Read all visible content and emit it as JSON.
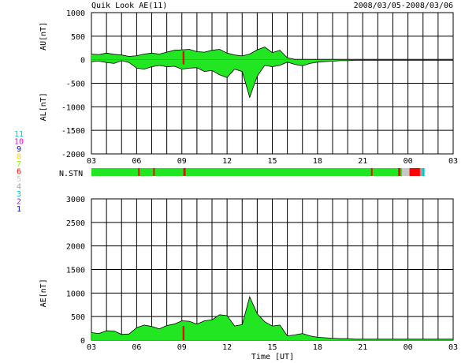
{
  "header": {
    "title": "Quik Look AE(11)",
    "date_range": "2008/03/05-2008/03/06"
  },
  "station_legend": [
    {
      "label": "11",
      "color": "#00c8c8"
    },
    {
      "label": "10",
      "color": "#ff00ff"
    },
    {
      "label": "9",
      "color": "#0000cc"
    },
    {
      "label": "8",
      "color": "#ffcc00"
    },
    {
      "label": "7",
      "color": "#7cfc00"
    },
    {
      "label": "6",
      "color": "#ff0000"
    },
    {
      "label": "5",
      "color": "#c8c8c8"
    },
    {
      "label": "4",
      "color": "#a0a0a0"
    },
    {
      "label": "3",
      "color": "#00c8c8"
    },
    {
      "label": "2",
      "color": "#8a2be2"
    },
    {
      "label": "1",
      "color": "#0000ff"
    }
  ],
  "x_ticks": [
    "03",
    "06",
    "09",
    "12",
    "15",
    "18",
    "21",
    "00",
    "03"
  ],
  "xlabel": "Time [UT]",
  "nstn_label": "N.STN",
  "chart_data": [
    {
      "type": "area",
      "name": "AU/AL",
      "ylabel_top": "AU[nT]",
      "ylabel_bottom": "AL[nT]",
      "ylim": [
        -2000,
        1000
      ],
      "yticks": [
        1000,
        500,
        0,
        -500,
        -1000,
        -1500,
        -2000
      ],
      "x_unit": "hours since 03 UT",
      "xlim": [
        0,
        24
      ],
      "au": {
        "x": [
          0,
          0.5,
          1,
          1.5,
          2,
          2.5,
          3,
          3.5,
          4,
          4.5,
          5,
          5.5,
          6,
          6.5,
          7,
          7.5,
          8,
          8.5,
          9,
          9.5,
          10,
          10.5,
          11,
          11.5,
          12,
          12.5,
          13,
          13.5,
          14,
          14.5,
          15,
          15.5,
          16,
          16.5,
          17,
          17.5,
          18,
          18.5,
          19,
          19.5,
          20,
          21,
          21.5,
          22,
          22.5,
          23,
          23.5,
          24
        ],
        "y": [
          120,
          110,
          140,
          115,
          100,
          70,
          85,
          120,
          140,
          120,
          160,
          200,
          210,
          220,
          170,
          160,
          200,
          220,
          140,
          100,
          80,
          120,
          210,
          270,
          150,
          200,
          40,
          10,
          10,
          10,
          10,
          10,
          10,
          10,
          10,
          10,
          10,
          10,
          10,
          10,
          10,
          10,
          10,
          10,
          10,
          10,
          10,
          10
        ]
      },
      "al": {
        "x": [
          0,
          0.5,
          1,
          1.5,
          2,
          2.5,
          3,
          3.5,
          4,
          4.5,
          5,
          5.5,
          6,
          6.5,
          7,
          7.5,
          8,
          8.5,
          9,
          9.5,
          10,
          10.5,
          11,
          11.5,
          12,
          12.5,
          13,
          13.5,
          14,
          14.5,
          15,
          15.5,
          16,
          16.5,
          17,
          17.5,
          18,
          18.5,
          19,
          19.5,
          20,
          21,
          21.5,
          22,
          22.5,
          23,
          23.5,
          24
        ],
        "y": [
          -40,
          -30,
          -60,
          -80,
          -20,
          -60,
          -180,
          -200,
          -150,
          -120,
          -150,
          -140,
          -200,
          -180,
          -170,
          -250,
          -230,
          -320,
          -380,
          -200,
          -250,
          -800,
          -350,
          -120,
          -150,
          -120,
          -50,
          -100,
          -130,
          -80,
          -50,
          -40,
          -30,
          -20,
          -20,
          -10,
          -10,
          -10,
          -10,
          -10,
          -10,
          -10,
          -10,
          -10,
          -10,
          -10,
          -10,
          -10
        ]
      }
    },
    {
      "type": "area",
      "name": "AE",
      "ylabel": "AE[nT]",
      "ylim": [
        0,
        3000
      ],
      "yticks": [
        3000,
        2500,
        2000,
        1500,
        1000,
        500,
        0
      ],
      "x_unit": "hours since 03 UT",
      "xlim": [
        0,
        24
      ],
      "series": [
        {
          "x": [
            0,
            0.5,
            1,
            1.5,
            2,
            2.5,
            3,
            3.5,
            4,
            4.5,
            5,
            5.5,
            6,
            6.5,
            7,
            7.5,
            8,
            8.5,
            9,
            9.5,
            10,
            10.5,
            11,
            11.5,
            12,
            12.5,
            13,
            13.5,
            14,
            14.5,
            15,
            15.5,
            16,
            16.5,
            17,
            17.5,
            18,
            18.5,
            19,
            19.5,
            20,
            21,
            21.5,
            22,
            22.5,
            23,
            23.5,
            24
          ],
          "y": [
            160,
            140,
            200,
            195,
            120,
            130,
            265,
            320,
            290,
            240,
            310,
            340,
            410,
            400,
            340,
            410,
            430,
            540,
            520,
            300,
            330,
            920,
            560,
            390,
            300,
            320,
            90,
            110,
            140,
            90,
            60,
            50,
            40,
            30,
            30,
            20,
            20,
            20,
            20,
            20,
            20,
            20,
            20,
            20,
            20,
            20,
            20,
            20
          ]
        }
      ]
    }
  ]
}
